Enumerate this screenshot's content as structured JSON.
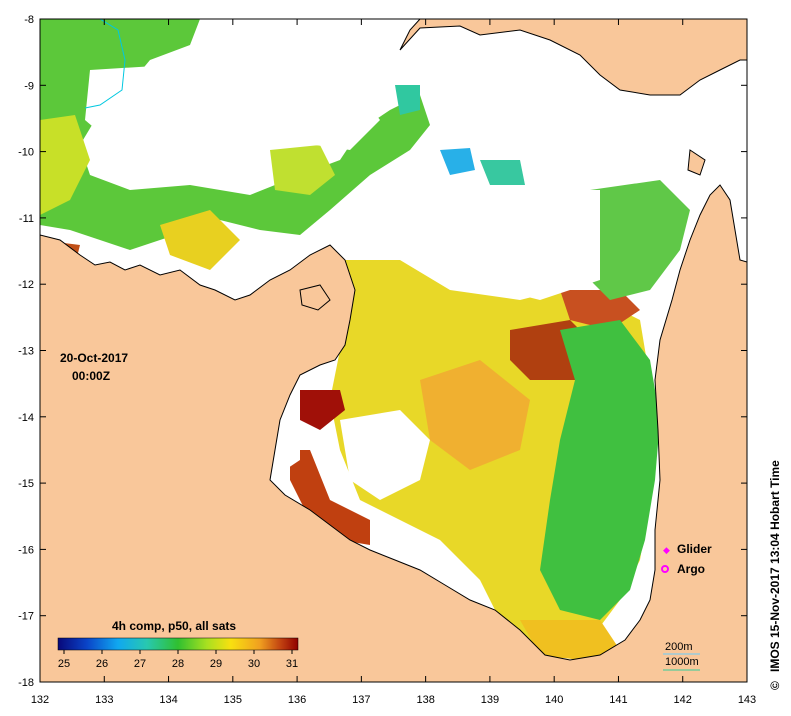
{
  "map": {
    "lon_ticks": [
      "132",
      "133",
      "134",
      "135",
      "136",
      "137",
      "138",
      "139",
      "140",
      "141",
      "142",
      "143"
    ],
    "lat_ticks": [
      "-8",
      "-9",
      "-10",
      "-11",
      "-12",
      "-13",
      "-14",
      "-15",
      "-16",
      "-17",
      "-18"
    ],
    "lon_range": [
      132,
      143
    ],
    "lat_range": [
      -18,
      -8
    ],
    "land_color": "#f9c79a",
    "nodata_color": "#ffffff"
  },
  "annotation": {
    "date": "20-Oct-2017",
    "time": "00:00Z"
  },
  "legend": {
    "glider": "Glider",
    "argo": "Argo",
    "glider_color": "#ff00ff",
    "argo_color": "#ff00ff"
  },
  "isobaths": {
    "label_200": "200m",
    "label_1000": "1000m",
    "color_200": "#66ccff",
    "color_1000": "#33cc99"
  },
  "colorbar": {
    "title": "4h comp, p50, all sats",
    "ticks": [
      "25",
      "26",
      "27",
      "28",
      "29",
      "30",
      "31"
    ],
    "range": [
      25,
      31
    ],
    "colors": [
      "#08087a",
      "#0a44c8",
      "#10a8f0",
      "#28c8b0",
      "#30c030",
      "#a8e020",
      "#f8e010",
      "#f0a020",
      "#c04010",
      "#900000"
    ]
  },
  "credit": "IMOS 15-Nov-2017 13:04 Hobart Time",
  "copyright_symbol": "©"
}
